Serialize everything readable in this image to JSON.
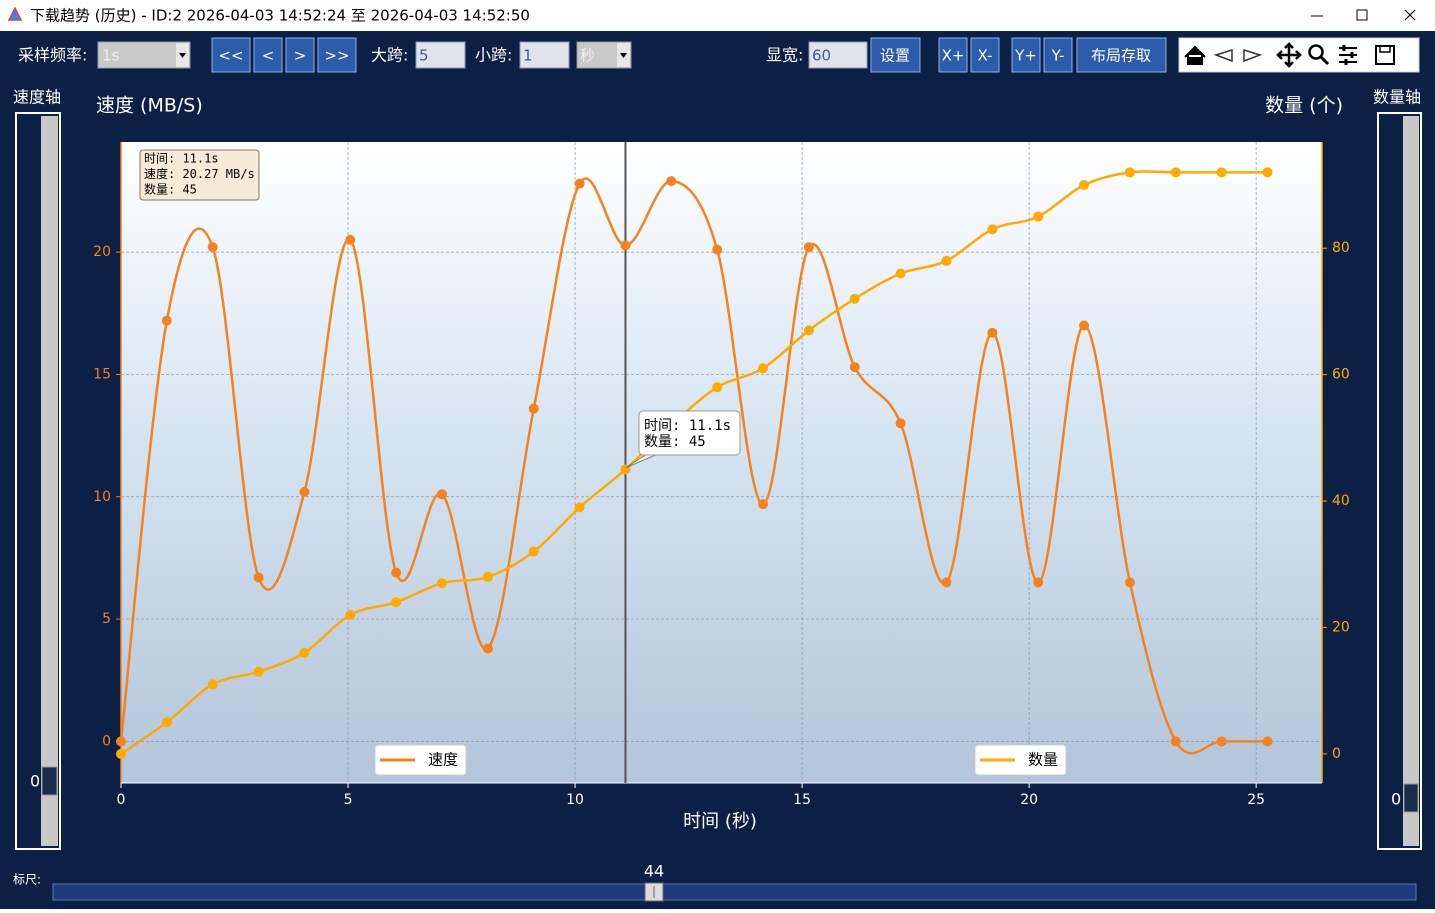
{
  "window": {
    "title": "下载趋势 (历史) - ID:2  2026-04-03 14:52:24 至 2026-04-03 14:52:50"
  },
  "toolbar": {
    "sample_rate_label": "采样频率:",
    "sample_rate": "1s",
    "nav_buttons": [
      "<<",
      "<",
      ">",
      ">>"
    ],
    "big_span_label": "大跨:",
    "big_span": 5,
    "small_span_label": "小跨:",
    "small_span": 1,
    "unit": "秒",
    "display_width_label": "显宽:",
    "display_width": 60,
    "set_button": "设置",
    "zoom_buttons": [
      "X+",
      "X-",
      "Y+",
      "Y-"
    ],
    "layout_button": "布局存取"
  },
  "left_axis_slider": {
    "label": "速度轴",
    "value": 0
  },
  "right_axis_slider": {
    "label": "数量轴",
    "value": 0
  },
  "ruler": {
    "label": "标尺:",
    "value": 44
  },
  "chart_data": {
    "type": "line",
    "ylabel": "速度 (MB/S)",
    "y2label": "数量 (个)",
    "xlabel": "时间 (秒)",
    "x": [
      0,
      1.01,
      2.02,
      3.03,
      4.04,
      5.05,
      6.06,
      7.07,
      8.08,
      9.09,
      10.1,
      11.11,
      12.12,
      13.13,
      14.14,
      15.15,
      16.16,
      17.17,
      18.18,
      19.19,
      20.2,
      21.21,
      22.22,
      23.23,
      24.24,
      25.25
    ],
    "series": [
      {
        "name": "速度",
        "color": "#f5821f",
        "values": [
          0,
          17.2,
          20.2,
          6.7,
          10.2,
          20.5,
          6.9,
          10.1,
          3.8,
          13.6,
          22.8,
          20.27,
          22.9,
          20.1,
          9.7,
          20.2,
          15.3,
          13.0,
          6.5,
          16.7,
          6.5,
          17.0,
          6.5,
          0,
          0,
          0
        ]
      },
      {
        "name": "数量",
        "color": "#ffaa00",
        "axis": "y2",
        "values": [
          0,
          5,
          11,
          13,
          16,
          22,
          24,
          27,
          28,
          32,
          39,
          45,
          52,
          58,
          61,
          67,
          72,
          76,
          78,
          83,
          85,
          90,
          92,
          92,
          92,
          92
        ]
      }
    ],
    "xlim": [
      0,
      26.45
    ],
    "ylim": [
      -1.7,
      24.5
    ],
    "y2lim": [
      -4.6,
      96.8
    ],
    "xticks": [
      0,
      5,
      10,
      15,
      20,
      25
    ],
    "yticks": [
      0,
      5,
      10,
      15,
      20
    ],
    "y2ticks": [
      0,
      20,
      40,
      60,
      80
    ],
    "grid": true,
    "cursor": {
      "x": 11.11
    },
    "annotations": {
      "info_box": [
        "时间: 11.1s",
        "速度: 20.27 MB/s",
        "数量: 45"
      ],
      "tooltip": [
        "时间: 11.1s",
        "数量: 45"
      ]
    }
  }
}
